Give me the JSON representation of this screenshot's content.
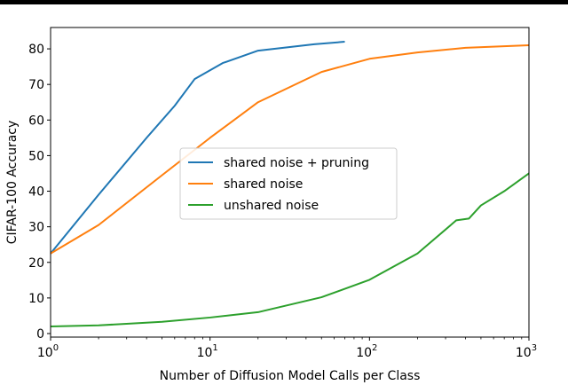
{
  "chart_data": {
    "type": "line",
    "xlabel": "Number of Diffusion Model Calls per Class",
    "ylabel": "CIFAR-100 Accuracy",
    "x_scale": "log",
    "xlim": [
      1,
      1000
    ],
    "ylim": [
      -1,
      86
    ],
    "x_ticks": [
      {
        "value": 1,
        "base": "10",
        "exp": "0"
      },
      {
        "value": 10,
        "base": "10",
        "exp": "1"
      },
      {
        "value": 100,
        "base": "10",
        "exp": "2"
      },
      {
        "value": 1000,
        "base": "10",
        "exp": "3"
      }
    ],
    "y_ticks": [
      0,
      10,
      20,
      30,
      40,
      50,
      60,
      70,
      80
    ],
    "grid": false,
    "legend_position": "center-left",
    "series": [
      {
        "name": "shared noise + pruning",
        "color": "#1f77b4",
        "x": [
          1,
          2,
          4,
          6,
          8,
          12,
          20,
          45,
          70
        ],
        "y": [
          22.5,
          39,
          55,
          64,
          71.5,
          76,
          79.5,
          81.3,
          82
        ]
      },
      {
        "name": "shared noise",
        "color": "#ff7f0e",
        "x": [
          1,
          2,
          5,
          10,
          20,
          50,
          100,
          200,
          400,
          1000
        ],
        "y": [
          22.5,
          30.5,
          44.5,
          55,
          65,
          73.5,
          77.2,
          79,
          80.3,
          81
        ]
      },
      {
        "name": "unshared noise",
        "color": "#2ca02c",
        "x": [
          1,
          2,
          5,
          10,
          20,
          50,
          100,
          200,
          350,
          420,
          500,
          700,
          1000
        ],
        "y": [
          2,
          2.3,
          3.3,
          4.5,
          6,
          10.2,
          15.1,
          22.5,
          31.8,
          32.3,
          36,
          40,
          45
        ]
      }
    ]
  }
}
